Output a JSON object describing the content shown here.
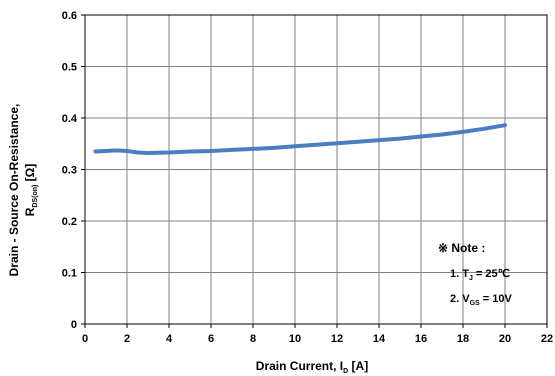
{
  "chart_data": {
    "type": "line",
    "title": "",
    "xlabel": "Drain Current, I",
    "xlabel_sub": "D",
    "xlabel_unit": " [A]",
    "ylabel_line1": "Drain - Source On-Resistance,",
    "ylabel_line2_main": "R",
    "ylabel_line2_sub": "DS(on)",
    "ylabel_line2_unit": " [Ω]",
    "xlim": [
      0,
      22
    ],
    "ylim": [
      0,
      0.6
    ],
    "x_ticks": [
      0,
      2,
      4,
      6,
      8,
      10,
      12,
      14,
      16,
      18,
      20,
      22
    ],
    "x_tick_labels": [
      "0",
      "2",
      "4",
      "6",
      "8",
      "10",
      "12",
      "14",
      "16",
      "18",
      "20",
      "22"
    ],
    "y_ticks": [
      0,
      0.1,
      0.2,
      0.3,
      0.4,
      0.5,
      0.6
    ],
    "y_tick_labels": [
      "0",
      "0.1",
      "0.2",
      "0.3",
      "0.4",
      "0.5",
      "0.6"
    ],
    "grid": true,
    "series": [
      {
        "color": "#4a7ec2",
        "x": [
          0.5,
          1,
          1.5,
          2,
          2.5,
          3,
          4,
          5,
          6,
          7,
          8,
          9,
          10,
          11,
          12,
          13,
          14,
          15,
          16,
          17,
          18,
          19,
          20
        ],
        "y": [
          0.335,
          0.336,
          0.337,
          0.336,
          0.333,
          0.332,
          0.333,
          0.335,
          0.336,
          0.338,
          0.34,
          0.342,
          0.345,
          0.348,
          0.351,
          0.354,
          0.357,
          0.36,
          0.364,
          0.368,
          0.373,
          0.379,
          0.386
        ]
      }
    ],
    "annotation": {
      "title": "※ Note :",
      "line1_prefix": "1. T",
      "line1_sub": "J",
      "line1_suffix": " = 25℃",
      "line2_prefix": "2. V",
      "line2_sub": "GS",
      "line2_suffix": " = 10V"
    }
  }
}
